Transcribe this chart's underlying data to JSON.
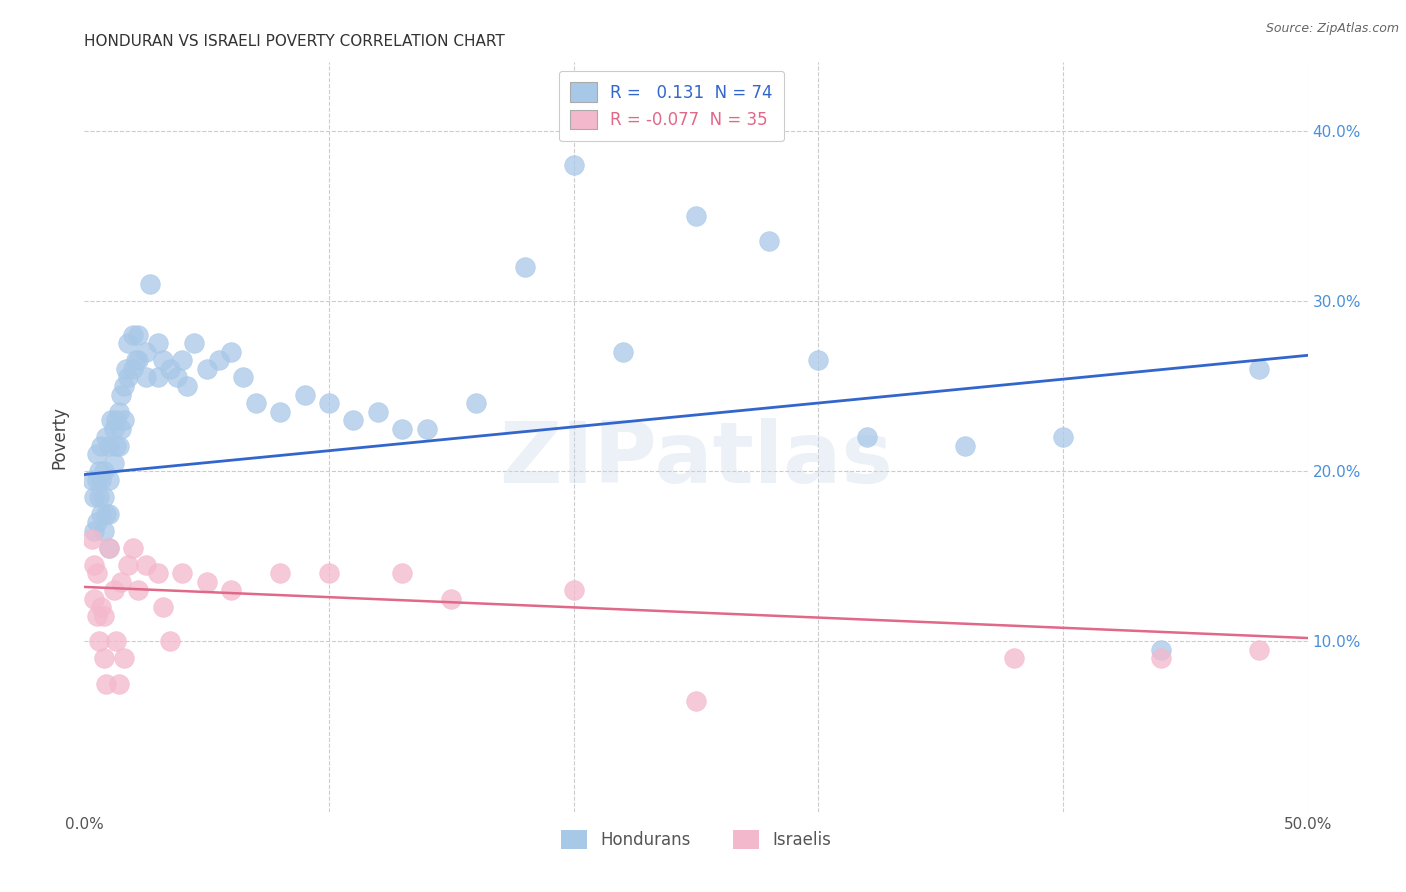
{
  "title": "HONDURAN VS ISRAELI POVERTY CORRELATION CHART",
  "source": "Source: ZipAtlas.com",
  "ylabel": "Poverty",
  "xlim": [
    0.0,
    0.5
  ],
  "ylim": [
    0.0,
    0.44
  ],
  "blue_R": 0.131,
  "blue_N": 74,
  "pink_R": -0.077,
  "pink_N": 35,
  "blue_color": "#a8c8e8",
  "pink_color": "#f4b8cc",
  "blue_line_color": "#3366cc",
  "pink_line_color": "#e06888",
  "grid_color": "#cccccc",
  "background_color": "#ffffff",
  "watermark": "ZIPatlas",
  "legend_label_blue": "Hondurans",
  "legend_label_pink": "Israelis",
  "blue_line_x0": 0.0,
  "blue_line_y0": 0.198,
  "blue_line_x1": 0.5,
  "blue_line_y1": 0.268,
  "pink_line_x0": 0.0,
  "pink_line_y0": 0.132,
  "pink_line_x1": 0.5,
  "pink_line_y1": 0.102,
  "blue_x": [
    0.003,
    0.004,
    0.004,
    0.005,
    0.005,
    0.005,
    0.006,
    0.006,
    0.007,
    0.007,
    0.007,
    0.008,
    0.008,
    0.008,
    0.009,
    0.009,
    0.01,
    0.01,
    0.01,
    0.01,
    0.011,
    0.012,
    0.012,
    0.013,
    0.013,
    0.014,
    0.014,
    0.015,
    0.015,
    0.016,
    0.016,
    0.017,
    0.018,
    0.018,
    0.02,
    0.02,
    0.021,
    0.022,
    0.022,
    0.025,
    0.025,
    0.027,
    0.03,
    0.03,
    0.032,
    0.035,
    0.038,
    0.04,
    0.042,
    0.045,
    0.05,
    0.055,
    0.06,
    0.065,
    0.07,
    0.08,
    0.09,
    0.1,
    0.11,
    0.12,
    0.13,
    0.14,
    0.16,
    0.18,
    0.2,
    0.22,
    0.25,
    0.28,
    0.3,
    0.32,
    0.36,
    0.4,
    0.44,
    0.48
  ],
  "blue_y": [
    0.195,
    0.185,
    0.165,
    0.21,
    0.195,
    0.17,
    0.2,
    0.185,
    0.215,
    0.195,
    0.175,
    0.2,
    0.185,
    0.165,
    0.22,
    0.175,
    0.215,
    0.195,
    0.175,
    0.155,
    0.23,
    0.225,
    0.205,
    0.23,
    0.215,
    0.235,
    0.215,
    0.245,
    0.225,
    0.25,
    0.23,
    0.26,
    0.275,
    0.255,
    0.28,
    0.26,
    0.265,
    0.28,
    0.265,
    0.27,
    0.255,
    0.31,
    0.275,
    0.255,
    0.265,
    0.26,
    0.255,
    0.265,
    0.25,
    0.275,
    0.26,
    0.265,
    0.27,
    0.255,
    0.24,
    0.235,
    0.245,
    0.24,
    0.23,
    0.235,
    0.225,
    0.225,
    0.24,
    0.32,
    0.38,
    0.27,
    0.35,
    0.335,
    0.265,
    0.22,
    0.215,
    0.22,
    0.095,
    0.26
  ],
  "pink_x": [
    0.003,
    0.004,
    0.004,
    0.005,
    0.005,
    0.006,
    0.007,
    0.008,
    0.008,
    0.009,
    0.01,
    0.012,
    0.013,
    0.014,
    0.015,
    0.016,
    0.018,
    0.02,
    0.022,
    0.025,
    0.03,
    0.032,
    0.035,
    0.04,
    0.05,
    0.06,
    0.08,
    0.1,
    0.13,
    0.15,
    0.2,
    0.25,
    0.38,
    0.44,
    0.48
  ],
  "pink_y": [
    0.16,
    0.145,
    0.125,
    0.14,
    0.115,
    0.1,
    0.12,
    0.115,
    0.09,
    0.075,
    0.155,
    0.13,
    0.1,
    0.075,
    0.135,
    0.09,
    0.145,
    0.155,
    0.13,
    0.145,
    0.14,
    0.12,
    0.1,
    0.14,
    0.135,
    0.13,
    0.14,
    0.14,
    0.14,
    0.125,
    0.13,
    0.065,
    0.09,
    0.09,
    0.095
  ]
}
